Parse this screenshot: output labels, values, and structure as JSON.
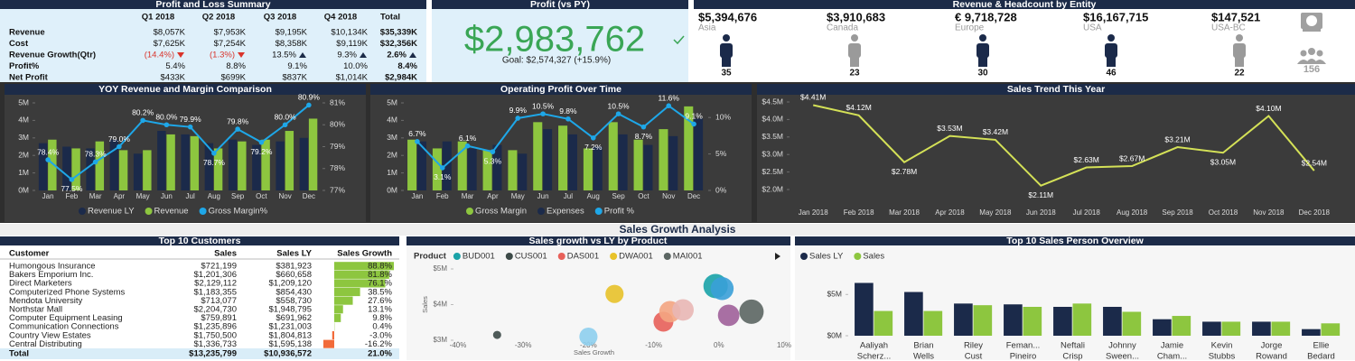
{
  "pnl": {
    "title": "Profit and Loss Summary",
    "columns": [
      "Q1 2018",
      "Q2 2018",
      "Q3 2018",
      "Q4 2018",
      "Total"
    ],
    "rows": [
      [
        "Revenue",
        "$8,057K",
        "$7,953K",
        "$9,195K",
        "$10,134K",
        "$35,339K"
      ],
      [
        "Cost",
        "$7,625K",
        "$7,254K",
        "$8,358K",
        "$9,119K",
        "$32,356K"
      ],
      [
        "Revenue Growth(Qtr)",
        "(14.4%)",
        "(1.3%)",
        "13.5%",
        "9.3%",
        "2.6%"
      ],
      [
        "Profit%",
        "5.4%",
        "8.8%",
        "9.1%",
        "10.0%",
        "8.4%"
      ],
      [
        "Net Profit",
        "$433K",
        "$699K",
        "$837K",
        "$1,014K",
        "$2,984K"
      ]
    ]
  },
  "profit": {
    "title": "Profit (vs PY)",
    "value": "$2,983,762",
    "goal": "Goal: $2,574,327 (+15.9%)"
  },
  "entities": {
    "title": "Revenue & Headcount by Entity",
    "items": [
      {
        "value": "$5,394,676",
        "name": "Asia",
        "count": 35,
        "color": "#1b2a4a"
      },
      {
        "value": "$3,910,683",
        "name": "Canada",
        "count": 23,
        "color": "#9a9a9a"
      },
      {
        "value": "€ 9,718,728",
        "name": "Europe",
        "count": 30,
        "color": "#1b2a4a"
      },
      {
        "value": "$16,167,715",
        "name": "USA",
        "count": 46,
        "color": "#1b2a4a"
      },
      {
        "value": "$147,521",
        "name": "USA-BC",
        "count": 22,
        "color": "#9a9a9a"
      }
    ],
    "total": 156
  },
  "section_title": "Sales Growth Analysis",
  "customers": {
    "title": "Top 10 Customers",
    "columns": [
      "Customer",
      "Sales",
      "Sales LY",
      "Sales Growth"
    ],
    "rows": [
      [
        "Humongous Insurance",
        "$721,199",
        "$381,923"
      ],
      [
        "Bakers Emporium Inc.",
        "$1,201,306",
        "$660,658"
      ],
      [
        "Direct Marketers",
        "$2,129,112",
        "$1,209,120"
      ],
      [
        "Computerized Phone Systems",
        "$1,183,355",
        "$854,430"
      ],
      [
        "Mendota University",
        "$713,077",
        "$558,730"
      ],
      [
        "Northstar Mall",
        "$2,204,730",
        "$1,948,795"
      ],
      [
        "Computer Equipment Leasing",
        "$759,891",
        "$691,962"
      ],
      [
        "Communication Connections",
        "$1,235,896",
        "$1,231,003"
      ],
      [
        "Country View Estates",
        "$1,750,500",
        "$1,804,813"
      ],
      [
        "Central Distributing",
        "$1,336,733",
        "$1,595,138"
      ]
    ],
    "growth": [
      88.8,
      81.8,
      76.1,
      38.5,
      27.6,
      13.1,
      9.8,
      0.4,
      -3.0,
      -16.2
    ],
    "growth_labels": [
      "88.8%",
      "81.8%",
      "76.1%",
      "38.5%",
      "27.6%",
      "13.1%",
      "9.8%",
      "0.4%",
      "-3.0%",
      "-16.2%"
    ],
    "positive_color": "#8dc63f",
    "negative_color": "#f26b3a",
    "total": [
      "Total",
      "$13,235,799",
      "$10,936,572",
      "21.0%"
    ]
  },
  "chart_data": [
    {
      "type": "bar",
      "title": "YOY Revenue and Margin Comparison",
      "categories": [
        "Jan",
        "Feb",
        "Mar",
        "Apr",
        "May",
        "Jun",
        "Jul",
        "Aug",
        "Sep",
        "Oct",
        "Nov",
        "Dec"
      ],
      "series": [
        {
          "name": "Revenue LY",
          "color": "#1b2a4a",
          "values": [
            2.7,
            2.5,
            2.4,
            2.9,
            2.1,
            3.4,
            3.2,
            2.7,
            2.9,
            2.6,
            2.8,
            3.0
          ]
        },
        {
          "name": "Revenue",
          "color": "#8dc63f",
          "values": [
            2.9,
            2.4,
            2.8,
            2.3,
            2.3,
            3.2,
            3.1,
            2.4,
            2.8,
            2.9,
            3.4,
            4.1
          ]
        },
        {
          "name": "Gross Margin%",
          "color": "#1ea7e8",
          "axis": "y2",
          "values": [
            78.4,
            77.5,
            78.3,
            79.0,
            80.2,
            80.0,
            79.9,
            78.7,
            79.8,
            79.2,
            80.0,
            80.9
          ],
          "value_labels": [
            "78.4%",
            "77.5%",
            "78.3%",
            "79.0%",
            "80.2%",
            "80.0%",
            "79.9%",
            "78.7%",
            "79.8%",
            "79.2%",
            "80.0%",
            "80.9%"
          ]
        }
      ],
      "ylim": [
        0,
        5
      ],
      "yticks": [
        {
          "value": 0,
          "label": "0M"
        },
        {
          "value": 1,
          "label": "1M"
        },
        {
          "value": 2,
          "label": "2M"
        },
        {
          "value": 3,
          "label": "3M"
        },
        {
          "value": 4,
          "label": "4M"
        },
        {
          "value": 5,
          "label": "5M"
        }
      ],
      "y2lim": [
        77,
        81
      ],
      "y2ticks": [
        {
          "value": 77,
          "label": "77%"
        },
        {
          "value": 78,
          "label": "78%"
        },
        {
          "value": 79,
          "label": "79%"
        },
        {
          "value": 80,
          "label": "80%"
        },
        {
          "value": 81,
          "label": "81%"
        }
      ],
      "legend": "bottom"
    },
    {
      "type": "bar",
      "title": "Operating Profit Over Time",
      "categories": [
        "Jan",
        "Feb",
        "Mar",
        "Apr",
        "May",
        "Jun",
        "Jul",
        "Aug",
        "Sep",
        "Oct",
        "Nov",
        "Dec"
      ],
      "series": [
        {
          "name": "Gross Margin",
          "color": "#8dc63f",
          "values": [
            2.9,
            2.4,
            2.8,
            2.3,
            2.3,
            3.9,
            3.7,
            2.4,
            3.9,
            2.9,
            3.5,
            4.8
          ]
        },
        {
          "name": "Expenses",
          "color": "#1b2a4a",
          "values": [
            2.8,
            2.8,
            2.4,
            2.6,
            2.1,
            3.5,
            3.2,
            2.5,
            3.2,
            2.6,
            3.1,
            4.1
          ]
        },
        {
          "name": "Profit %",
          "color": "#1ea7e8",
          "axis": "y2",
          "values": [
            6.7,
            3.1,
            6.1,
            5.3,
            9.9,
            10.5,
            9.8,
            7.2,
            10.5,
            8.7,
            11.6,
            9.1
          ],
          "value_labels": [
            "6.7%",
            "3.1%",
            "6.1%",
            "5.3%",
            "9.9%",
            "10.5%",
            "9.8%",
            "7.2%",
            "10.5%",
            "8.7%",
            "11.6%",
            "9.1%"
          ]
        }
      ],
      "ylim": [
        0,
        5
      ],
      "yticks": [
        {
          "value": 0,
          "label": "0M"
        },
        {
          "value": 1,
          "label": "1M"
        },
        {
          "value": 2,
          "label": "2M"
        },
        {
          "value": 3,
          "label": "3M"
        },
        {
          "value": 4,
          "label": "4M"
        },
        {
          "value": 5,
          "label": "5M"
        }
      ],
      "y2lim": [
        0,
        12
      ],
      "y2ticks": [
        {
          "value": 0,
          "label": "0%"
        },
        {
          "value": 5,
          "label": "5%"
        },
        {
          "value": 10,
          "label": "10%"
        }
      ],
      "legend": "bottom"
    },
    {
      "type": "line",
      "title": "Sales Trend This Year",
      "categories": [
        "Jan 2018",
        "Feb 2018",
        "Mar 2018",
        "Apr 2018",
        "May 2018",
        "Jun 2018",
        "Jul 2018",
        "Aug 2018",
        "Sep 2018",
        "Oct 2018",
        "Nov 2018",
        "Dec 2018"
      ],
      "series": [
        {
          "color": "#d4e157",
          "values": [
            4.41,
            4.12,
            2.78,
            3.53,
            3.42,
            2.11,
            2.63,
            2.67,
            3.21,
            3.05,
            4.1,
            2.54
          ],
          "value_labels": [
            "$4.41M",
            "$4.12M",
            "$2.78M",
            "$3.53M",
            "$3.42M",
            "$2.11M",
            "$2.63M",
            "$2.67M",
            "$3.21M",
            "$3.05M",
            "$4.10M",
            "$2.54M"
          ]
        }
      ],
      "ylim": [
        2,
        4.5
      ],
      "yticks": [
        {
          "value": 2,
          "label": "$2.0M"
        },
        {
          "value": 2.5,
          "label": "$2.5M"
        },
        {
          "value": 3,
          "label": "$3.0M"
        },
        {
          "value": 3.5,
          "label": "$3.5M"
        },
        {
          "value": 4,
          "label": "$4.0M"
        },
        {
          "value": 4.5,
          "label": "$4.5M"
        }
      ]
    },
    {
      "type": "scatter",
      "title": "Sales growth vs LY by Product",
      "legend_title": "Product",
      "xlabel": "Sales Growth",
      "ylabel": "Sales",
      "series": [
        {
          "name": "BUD001",
          "color": "#1aa3a8",
          "x": [
            -0.5
          ],
          "values": [
            4.52
          ],
          "sizes": [
            9
          ]
        },
        {
          "name": "CUS001",
          "color": "#3d4a48",
          "x": [
            -34
          ],
          "values": [
            3.15
          ],
          "sizes": [
            1
          ]
        },
        {
          "name": "DAS001",
          "color": "#e8615a",
          "x": [
            -8.5
          ],
          "values": [
            3.52
          ],
          "sizes": [
            6
          ]
        },
        {
          "name": "DWA001",
          "color": "#e8c22a",
          "x": [
            -16
          ],
          "values": [
            4.3
          ],
          "sizes": [
            5
          ]
        },
        {
          "name": "MAI001",
          "color": "#5c6663",
          "x": [
            5
          ],
          "values": [
            3.8
          ],
          "sizes": [
            9
          ]
        },
        {
          "color": "#3aa0d8",
          "x": [
            0.5
          ],
          "values": [
            4.45
          ],
          "sizes": [
            8
          ]
        },
        {
          "color": "#f4a582",
          "x": [
            -7.5
          ],
          "values": [
            3.8
          ],
          "sizes": [
            7
          ]
        },
        {
          "color": "#e9b7b5",
          "x": [
            -5.5
          ],
          "values": [
            3.85
          ],
          "sizes": [
            7
          ]
        },
        {
          "color": "#a0609a",
          "x": [
            1.5
          ],
          "values": [
            3.7
          ],
          "sizes": [
            7
          ]
        },
        {
          "color": "#8ecfee",
          "x": [
            -20
          ],
          "values": [
            3.1
          ],
          "sizes": [
            5
          ]
        }
      ],
      "xlim": [
        -40,
        10
      ],
      "xticks": [
        {
          "value": -40,
          "label": "-40%"
        },
        {
          "value": -30,
          "label": "-30%"
        },
        {
          "value": -20,
          "label": "-20%"
        },
        {
          "value": -10,
          "label": "-10%"
        },
        {
          "value": 0,
          "label": "0%"
        },
        {
          "value": 10,
          "label": "10%"
        }
      ],
      "ylim": [
        3,
        5
      ],
      "yticks": [
        {
          "value": 3,
          "label": "$3M"
        },
        {
          "value": 4,
          "label": "$4M"
        },
        {
          "value": 5,
          "label": "$5M"
        }
      ]
    },
    {
      "type": "bar",
      "title": "Top 10 Sales Person Overview",
      "categories": [
        [
          "Aaliyah",
          "Scherz..."
        ],
        [
          "Brian",
          "Wells"
        ],
        [
          "Riley",
          "Cust"
        ],
        [
          "Feman...",
          "Pineiro"
        ],
        [
          "Neftali",
          "Crisp"
        ],
        [
          "Johnny",
          "Sween..."
        ],
        [
          "Jamie",
          "Cham..."
        ],
        [
          "Kevin",
          "Stubbs"
        ],
        [
          "Jorge",
          "Rowand"
        ],
        [
          "Ellie",
          "Bedard"
        ]
      ],
      "series": [
        {
          "name": "Sales  LY",
          "color": "#1b2a4a",
          "values": [
            6.4,
            5.3,
            3.9,
            3.8,
            3.5,
            3.5,
            2.0,
            1.7,
            1.7,
            0.8
          ]
        },
        {
          "name": "Sales",
          "color": "#8dc63f",
          "values": [
            3.0,
            3.0,
            3.7,
            3.5,
            3.9,
            2.9,
            2.4,
            1.7,
            1.7,
            1.5
          ]
        }
      ],
      "ylim": [
        0,
        7
      ],
      "yticks": [
        {
          "value": 0,
          "label": "$0M"
        },
        {
          "value": 5,
          "label": "$5M"
        }
      ],
      "legend": "top-left"
    }
  ]
}
